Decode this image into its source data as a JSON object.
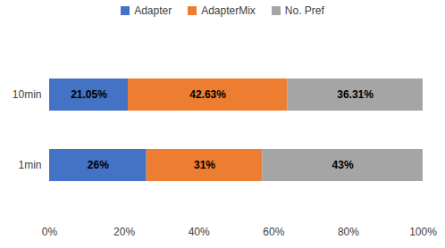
{
  "chart_data": {
    "type": "bar",
    "orientation": "horizontal",
    "stacked": true,
    "data_labels": true,
    "grid": false,
    "legend": "top",
    "categories": [
      "10min",
      "1min"
    ],
    "series": [
      {
        "name": "Adapter",
        "color": "#4472c4",
        "values": [
          21.05,
          26
        ],
        "value_labels": [
          "21.05%",
          "26%"
        ]
      },
      {
        "name": "AdapterMix",
        "color": "#ed7d31",
        "values": [
          42.63,
          31
        ],
        "value_labels": [
          "42.63%",
          "31%"
        ]
      },
      {
        "name": "No. Pref",
        "color": "#a5a5a5",
        "values": [
          36.31,
          43
        ],
        "value_labels": [
          "36.31%",
          "43%"
        ]
      }
    ],
    "xlim": [
      0,
      100
    ],
    "xticks": [
      {
        "value": 0,
        "label": "0%"
      },
      {
        "value": 20,
        "label": "20%"
      },
      {
        "value": 40,
        "label": "40%"
      },
      {
        "value": 60,
        "label": "60%"
      },
      {
        "value": 80,
        "label": "80%"
      },
      {
        "value": 100,
        "label": "100%"
      }
    ]
  }
}
